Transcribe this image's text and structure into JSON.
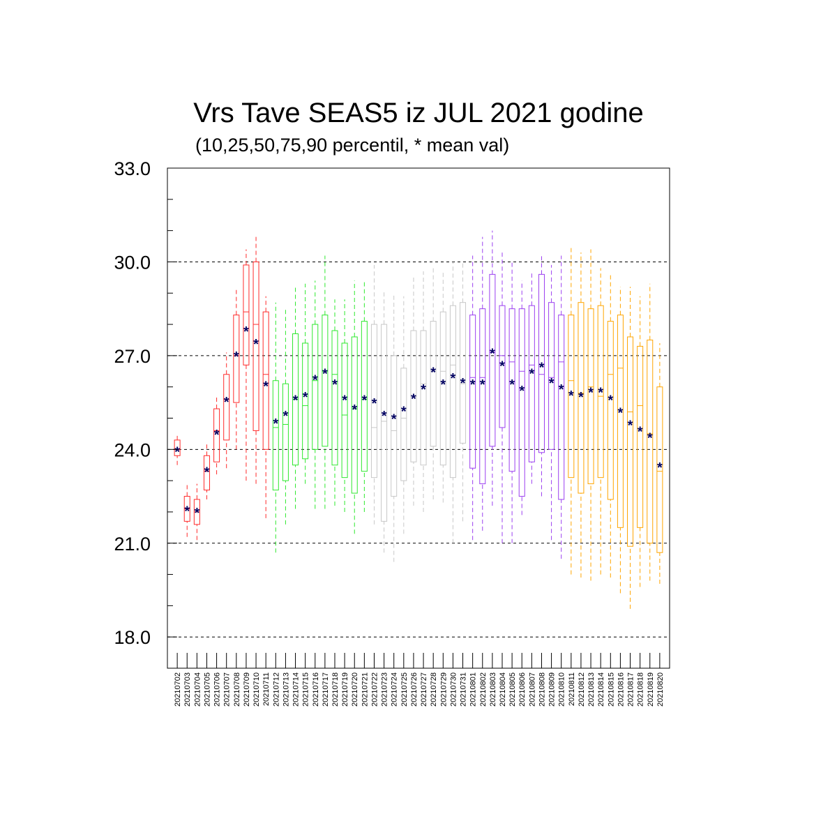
{
  "chart_data": {
    "type": "box",
    "title": "Vrs Tave SEAS5 iz JUL 2021 godine",
    "subtitle": "(10,25,50,75,90 percentil, * mean val)",
    "xlabel": "",
    "ylabel": "",
    "ylim": [
      17.0,
      33.0
    ],
    "yticks": [
      "18.0",
      "21.0",
      "24.0",
      "27.0",
      "30.0",
      "33.0"
    ],
    "grid": "horizontal dashed at major ticks",
    "colors": {
      "red": "#ff2a2a",
      "green": "#2ee82e",
      "gray": "#c8c8c8",
      "purple": "#9b3ff0",
      "orange": "#ffa500",
      "mean_marker": "#000060"
    },
    "categories": [
      "20210702",
      "20210703",
      "20210704",
      "20210705",
      "20210706",
      "20210707",
      "20210708",
      "20210709",
      "20210710",
      "20210711",
      "20210712",
      "20210713",
      "20210714",
      "20210715",
      "20210716",
      "20210717",
      "20210718",
      "20210719",
      "20210720",
      "20210721",
      "20210722",
      "20210723",
      "20210724",
      "20210725",
      "20210726",
      "20210727",
      "20210728",
      "20210729",
      "20210730",
      "20210731",
      "20210801",
      "20210802",
      "20210803",
      "20210804",
      "20210805",
      "20210806",
      "20210807",
      "20210808",
      "20210809",
      "20210810",
      "20210811",
      "20210812",
      "20210813",
      "20210814",
      "20210815",
      "20210816",
      "20210817",
      "20210818",
      "20210819",
      "20210820"
    ],
    "color_groups": [
      "red",
      "red",
      "red",
      "red",
      "red",
      "red",
      "red",
      "red",
      "red",
      "red",
      "green",
      "green",
      "green",
      "green",
      "green",
      "green",
      "green",
      "green",
      "green",
      "green",
      "gray",
      "gray",
      "gray",
      "gray",
      "gray",
      "gray",
      "gray",
      "gray",
      "gray",
      "gray",
      "purple",
      "purple",
      "purple",
      "purple",
      "purple",
      "purple",
      "purple",
      "purple",
      "purple",
      "purple",
      "orange",
      "orange",
      "orange",
      "orange",
      "orange",
      "orange",
      "orange",
      "orange",
      "orange",
      "orange"
    ],
    "p10": [
      23.5,
      21.2,
      21.1,
      22.4,
      23.2,
      23.4,
      24.0,
      23.0,
      22.9,
      21.8,
      20.7,
      21.6,
      22.1,
      22.9,
      22.1,
      22.1,
      22.2,
      22.0,
      21.3,
      22.0,
      21.6,
      20.7,
      20.4,
      21.3,
      22.2,
      22.0,
      22.4,
      22.3,
      21.0,
      21.7,
      21.1,
      21.4,
      22.2,
      21.0,
      21.0,
      21.9,
      22.9,
      22.5,
      21.1,
      20.5,
      20.0,
      19.9,
      19.8,
      20.0,
      19.9,
      19.4,
      18.9,
      19.6,
      19.8,
      19.7
    ],
    "p25": [
      23.8,
      21.7,
      21.6,
      22.7,
      23.6,
      24.3,
      25.5,
      26.7,
      24.6,
      24.0,
      22.7,
      23.0,
      23.5,
      23.7,
      24.0,
      24.1,
      23.5,
      23.1,
      22.6,
      23.3,
      23.1,
      21.7,
      22.5,
      23.0,
      23.6,
      23.5,
      24.1,
      23.5,
      23.1,
      24.2,
      23.4,
      22.9,
      24.1,
      24.7,
      23.3,
      22.5,
      23.6,
      23.9,
      24.0,
      22.4,
      23.1,
      22.6,
      22.9,
      23.1,
      22.4,
      21.5,
      20.9,
      21.5,
      21.0,
      20.7
    ],
    "p50": [
      24.0,
      22.1,
      22.0,
      23.3,
      24.6,
      25.6,
      27.0,
      28.4,
      28.0,
      26.4,
      24.7,
      24.8,
      25.6,
      25.4,
      26.2,
      26.5,
      26.4,
      25.1,
      25.3,
      25.6,
      24.7,
      24.9,
      24.6,
      25.0,
      25.7,
      26.1,
      26.5,
      26.5,
      26.7,
      26.1,
      26.3,
      26.3,
      27.1,
      27.0,
      26.8,
      26.5,
      26.7,
      26.4,
      26.3,
      26.8,
      26.2,
      25.8,
      26.0,
      25.7,
      26.4,
      26.6,
      25.2,
      25.4,
      24.5,
      23.3
    ],
    "p75": [
      24.3,
      22.5,
      22.4,
      23.8,
      25.3,
      26.4,
      28.3,
      29.9,
      30.0,
      28.4,
      26.2,
      26.1,
      27.7,
      27.4,
      28.0,
      28.3,
      27.8,
      27.4,
      27.6,
      28.1,
      28.0,
      28.0,
      27.0,
      26.6,
      27.8,
      27.8,
      28.1,
      28.4,
      28.6,
      28.7,
      28.3,
      28.5,
      29.6,
      28.6,
      28.5,
      28.5,
      28.6,
      29.6,
      28.7,
      28.3,
      28.3,
      28.7,
      28.5,
      28.6,
      28.1,
      28.3,
      27.6,
      27.3,
      27.5,
      26.0
    ],
    "p90": [
      24.5,
      22.9,
      22.9,
      24.2,
      25.7,
      27.1,
      29.1,
      30.4,
      30.8,
      28.9,
      28.7,
      28.5,
      29.2,
      29.3,
      29.4,
      30.2,
      28.8,
      28.8,
      29.4,
      29.4,
      29.9,
      29.1,
      29.0,
      28.9,
      29.5,
      29.7,
      29.8,
      29.7,
      30.0,
      30.0,
      30.2,
      30.8,
      31.0,
      30.3,
      30.0,
      29.4,
      29.7,
      30.2,
      29.9,
      30.2,
      30.5,
      30.3,
      30.4,
      29.8,
      29.6,
      29.2,
      29.2,
      28.9,
      29.3,
      27.4
    ],
    "mean": [
      23.95,
      22.05,
      22.0,
      23.3,
      24.5,
      25.55,
      27.0,
      27.8,
      27.4,
      26.05,
      24.85,
      25.1,
      25.6,
      25.7,
      26.25,
      26.45,
      26.1,
      25.6,
      25.3,
      25.6,
      25.5,
      25.1,
      25.0,
      25.25,
      25.65,
      25.95,
      26.5,
      26.1,
      26.3,
      26.15,
      26.1,
      26.1,
      27.1,
      26.7,
      26.1,
      25.9,
      26.45,
      26.65,
      26.15,
      25.95,
      25.75,
      25.7,
      25.85,
      25.85,
      25.6,
      25.2,
      24.8,
      24.6,
      24.4,
      23.45
    ]
  }
}
